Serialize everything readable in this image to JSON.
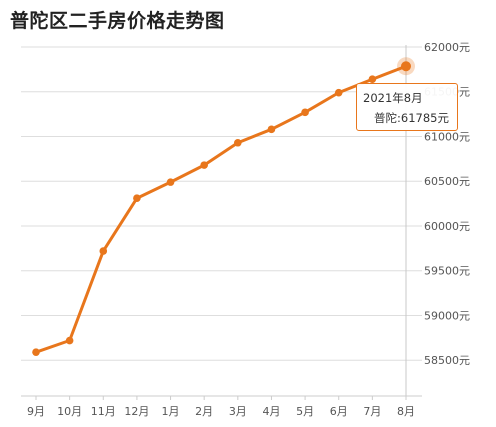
{
  "chart_data": {
    "type": "line",
    "title": "普陀区二手房价格走势图",
    "categories": [
      "9月",
      "10月",
      "11月",
      "12月",
      "1月",
      "2月",
      "3月",
      "4月",
      "5月",
      "6月",
      "7月",
      "8月"
    ],
    "series": [
      {
        "name": "普陀",
        "values": [
          58590,
          58720,
          59720,
          60310,
          60490,
          60680,
          60930,
          61080,
          61270,
          61490,
          61640,
          61785
        ],
        "color": "#e8761c"
      }
    ],
    "y_ticks": [
      "58500元",
      "59000元",
      "59500元",
      "60000元",
      "60500元",
      "61000元",
      "61500元",
      "62000元"
    ],
    "ylim": [
      58100,
      62000
    ],
    "grid": true,
    "tooltip": {
      "date": "2021年8月",
      "value_text": "普陀:61785元"
    }
  }
}
